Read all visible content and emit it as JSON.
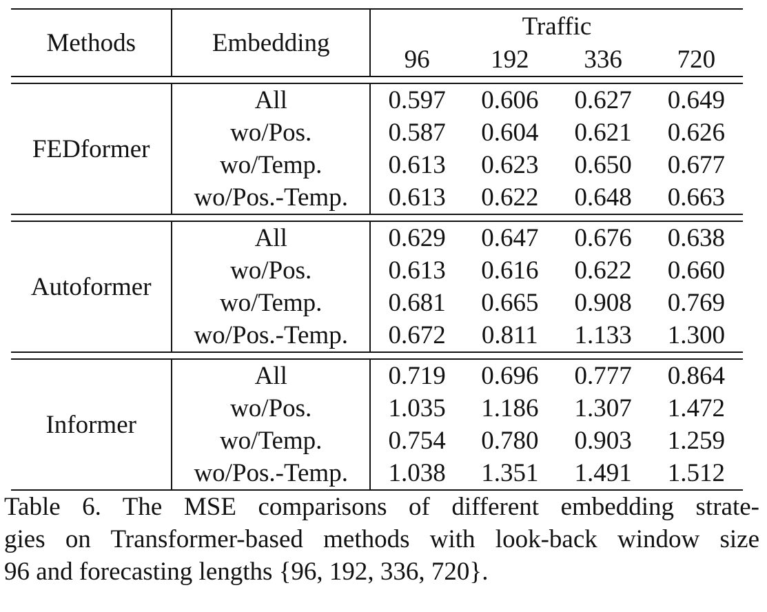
{
  "table": {
    "header": {
      "methods": "Methods",
      "embedding": "Embedding",
      "dataset": "Traffic",
      "horizons": [
        "96",
        "192",
        "336",
        "720"
      ]
    },
    "groups": [
      {
        "method": "FEDformer",
        "rows": [
          {
            "embedding": "All",
            "values": [
              "0.597",
              "0.606",
              "0.627",
              "0.649"
            ],
            "bold": [
              false,
              false,
              false,
              false
            ]
          },
          {
            "embedding": "wo/Pos.",
            "values": [
              "0.587",
              "0.604",
              "0.621",
              "0.626"
            ],
            "bold": [
              true,
              true,
              true,
              true
            ]
          },
          {
            "embedding": "wo/Temp.",
            "values": [
              "0.613",
              "0.623",
              "0.650",
              "0.677"
            ],
            "bold": [
              false,
              false,
              false,
              false
            ]
          },
          {
            "embedding": "wo/Pos.-Temp.",
            "values": [
              "0.613",
              "0.622",
              "0.648",
              "0.663"
            ],
            "bold": [
              false,
              false,
              false,
              false
            ]
          }
        ]
      },
      {
        "method": "Autoformer",
        "rows": [
          {
            "embedding": "All",
            "values": [
              "0.629",
              "0.647",
              "0.676",
              "0.638"
            ],
            "bold": [
              false,
              false,
              false,
              true
            ]
          },
          {
            "embedding": "wo/Pos.",
            "values": [
              "0.613",
              "0.616",
              "0.622",
              "0.660"
            ],
            "bold": [
              true,
              true,
              true,
              false
            ]
          },
          {
            "embedding": "wo/Temp.",
            "values": [
              "0.681",
              "0.665",
              "0.908",
              "0.769"
            ],
            "bold": [
              false,
              false,
              false,
              false
            ]
          },
          {
            "embedding": "wo/Pos.-Temp.",
            "values": [
              "0.672",
              "0.811",
              "1.133",
              "1.300"
            ],
            "bold": [
              false,
              false,
              false,
              false
            ]
          }
        ]
      },
      {
        "method": "Informer",
        "rows": [
          {
            "embedding": "All",
            "values": [
              "0.719",
              "0.696",
              "0.777",
              "0.864"
            ],
            "bold": [
              true,
              true,
              true,
              true
            ]
          },
          {
            "embedding": "wo/Pos.",
            "values": [
              "1.035",
              "1.186",
              "1.307",
              "1.472"
            ],
            "bold": [
              false,
              false,
              false,
              false
            ]
          },
          {
            "embedding": "wo/Temp.",
            "values": [
              "0.754",
              "0.780",
              "0.903",
              "1.259"
            ],
            "bold": [
              false,
              false,
              false,
              false
            ]
          },
          {
            "embedding": "wo/Pos.-Temp.",
            "values": [
              "1.038",
              "1.351",
              "1.491",
              "1.512"
            ],
            "bold": [
              false,
              false,
              false,
              false
            ]
          }
        ]
      }
    ]
  },
  "caption": {
    "line1": "Table 6.  The MSE comparisons of different embedding strate-",
    "line2": "gies on Transformer-based methods with look-back window size",
    "line3": "96 and forecasting lengths {96, 192, 336, 720}."
  }
}
